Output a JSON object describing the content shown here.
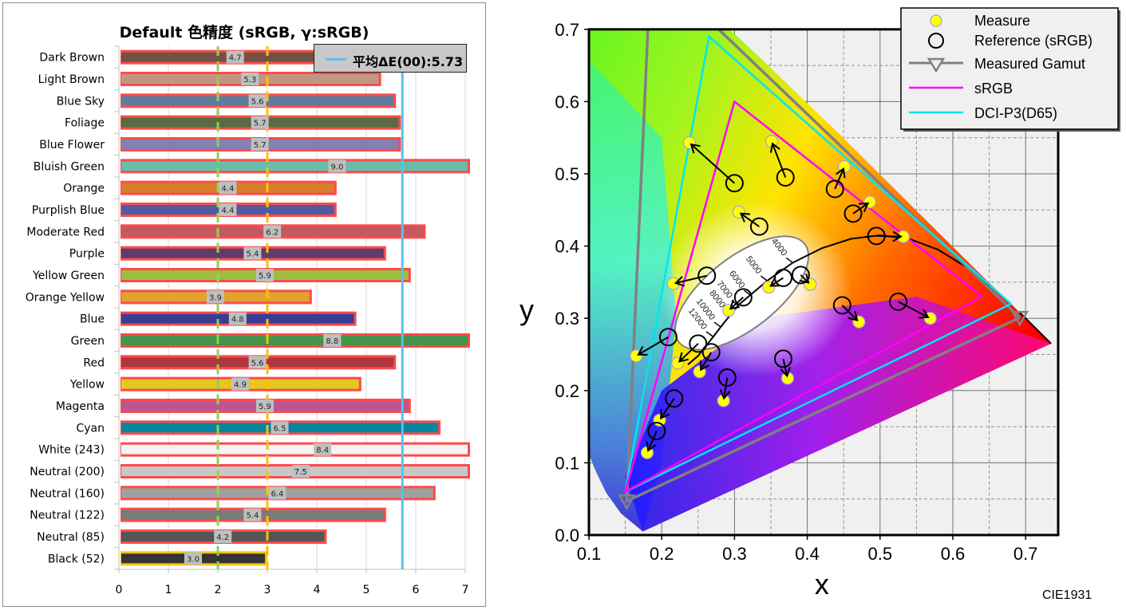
{
  "bar_chart_title": "Default 色精度 (sRGB, γ:sRGB)",
  "average_legend": "平均ΔE(00):5.73",
  "cie_caption": "CIE1931",
  "chart_data": [
    {
      "type": "bar",
      "orientation": "horizontal",
      "title": "Default 色精度 (sRGB, γ:sRGB)",
      "xlabel": "",
      "ylabel": "",
      "xlim": [
        0,
        7
      ],
      "x_ticks": [
        "0",
        "1",
        "2",
        "3",
        "4",
        "5",
        "6",
        "7"
      ],
      "grid": true,
      "categories": [
        "Dark Brown",
        "Light Brown",
        "Blue Sky",
        "Foliage",
        "Blue Flower",
        "Bluish Green",
        "Orange",
        "Purplish Blue",
        "Moderate Red",
        "Purple",
        "Yellow Green",
        "Orange Yellow",
        "Blue",
        "Green",
        "Red",
        "Yellow",
        "Magenta",
        "Cyan",
        "White (243)",
        "Neutral (200)",
        "Neutral (160)",
        "Neutral (122)",
        "Neutral (85)",
        "Black (52)"
      ],
      "values": [
        4.7,
        5.3,
        5.6,
        5.7,
        5.7,
        9.0,
        4.4,
        4.4,
        6.2,
        5.4,
        5.9,
        3.9,
        4.8,
        8.8,
        5.6,
        4.9,
        5.9,
        6.5,
        8.4,
        7.5,
        6.4,
        5.4,
        4.2,
        3.0
      ],
      "value_labels": [
        "4.7",
        "5.3",
        "5.6",
        "5.7",
        "5.7",
        "9.0",
        "4.4",
        "4.4",
        "6.2",
        "5.4",
        "5.9",
        "3.9",
        "4.8",
        "8.8",
        "5.6",
        "4.9",
        "5.9",
        "6.5",
        "8.4",
        "7.5",
        "6.4",
        "5.4",
        "4.2",
        "3.0"
      ],
      "bar_colors": [
        "#735244",
        "#c29682",
        "#627a9d",
        "#576c43",
        "#8580b1",
        "#67bdaa",
        "#d67e2c",
        "#505ba6",
        "#c15a63",
        "#5e3c6c",
        "#9dbc40",
        "#e0a32e",
        "#383d96",
        "#469449",
        "#af363c",
        "#e7c71f",
        "#bb5695",
        "#0885a1",
        "#f3f3f2",
        "#c8c8c8",
        "#a0a0a0",
        "#7a7a79",
        "#555555",
        "#343434"
      ],
      "border_colors": [
        "#ff4a4a",
        "#ff4a4a",
        "#ff4a4a",
        "#ff4a4a",
        "#ff4a4a",
        "#ff4a4a",
        "#ff4a4a",
        "#ff4a4a",
        "#ff4a4a",
        "#ff4a4a",
        "#ff4a4a",
        "#ff4a4a",
        "#ff4a4a",
        "#ff4a4a",
        "#ff4a4a",
        "#ff4a4a",
        "#ff4a4a",
        "#ff4a4a",
        "#ff4a4a",
        "#ff4a4a",
        "#ff4a4a",
        "#ff4a4a",
        "#ff4a4a",
        "#ffc000"
      ],
      "reference_lines": [
        {
          "name": "threshold-2",
          "value": 2,
          "color": "#92d050",
          "style": "dashed"
        },
        {
          "name": "threshold-3",
          "value": 3,
          "color": "#ffc000",
          "style": "dashed"
        },
        {
          "name": "average",
          "value": 5.73,
          "color": "#5bc0eb",
          "style": "solid",
          "label": "平均ΔE(00):5.73"
        }
      ],
      "legend_position": "top-right"
    },
    {
      "type": "scatter",
      "title": "CIE1931",
      "xlabel": "x",
      "ylabel": "y",
      "xlim": [
        0.1,
        0.745
      ],
      "ylim": [
        0.0,
        0.7
      ],
      "x_ticks": [
        "0.1",
        "0.2",
        "0.3",
        "0.4",
        "0.5",
        "0.6",
        "0.7"
      ],
      "y_ticks": [
        "0.0",
        "0.1",
        "0.2",
        "0.3",
        "0.4",
        "0.5",
        "0.6",
        "0.7"
      ],
      "grid": true,
      "legend_position": "top-right",
      "legend": [
        {
          "name": "Measure",
          "marker": "yellow-dot"
        },
        {
          "name": "Reference (sRGB)",
          "marker": "black-circle"
        },
        {
          "name": "Measured Gamut",
          "marker": "gray-line-triangle"
        },
        {
          "name": "sRGB",
          "marker": "magenta-line"
        },
        {
          "name": "DCI-P3(D65)",
          "marker": "cyan-line"
        }
      ],
      "gamuts": {
        "sRGB": {
          "color": "#ff00ff",
          "points": [
            [
              0.64,
              0.33
            ],
            [
              0.3,
              0.6
            ],
            [
              0.15,
              0.06
            ]
          ]
        },
        "DCI-P3(D65)": {
          "color": "#00e5ee",
          "points": [
            [
              0.68,
              0.32
            ],
            [
              0.265,
              0.69
            ],
            [
              0.15,
              0.06
            ]
          ]
        },
        "Measured Gamut": {
          "color": "#808080",
          "points": [
            [
              0.692,
              0.301
            ],
            [
              0.185,
              0.79
            ],
            [
              0.152,
              0.047
            ]
          ]
        }
      },
      "pairs": [
        {
          "measure": [
            0.238,
            0.543
          ],
          "reference": [
            0.3,
            0.487
          ]
        },
        {
          "measure": [
            0.351,
            0.545
          ],
          "reference": [
            0.37,
            0.495
          ]
        },
        {
          "measure": [
            0.451,
            0.51
          ],
          "reference": [
            0.438,
            0.479
          ]
        },
        {
          "measure": [
            0.486,
            0.461
          ],
          "reference": [
            0.463,
            0.445
          ]
        },
        {
          "measure": [
            0.532,
            0.413
          ],
          "reference": [
            0.495,
            0.414
          ]
        },
        {
          "measure": [
            0.306,
            0.447
          ],
          "reference": [
            0.334,
            0.427
          ]
        },
        {
          "measure": [
            0.216,
            0.348
          ],
          "reference": [
            0.262,
            0.359
          ]
        },
        {
          "measure": [
            0.292,
            0.311
          ],
          "reference": [
            0.312,
            0.329
          ]
        },
        {
          "measure": [
            0.347,
            0.343
          ],
          "reference": [
            0.367,
            0.356
          ]
        },
        {
          "measure": [
            0.404,
            0.347
          ],
          "reference": [
            0.391,
            0.36
          ]
        },
        {
          "measure": [
            0.165,
            0.248
          ],
          "reference": [
            0.209,
            0.274
          ]
        },
        {
          "measure": [
            0.222,
            0.238
          ],
          "reference": [
            0.25,
            0.265
          ]
        },
        {
          "measure": [
            0.252,
            0.226
          ],
          "reference": [
            0.268,
            0.253
          ]
        },
        {
          "measure": [
            0.285,
            0.186
          ],
          "reference": [
            0.29,
            0.218
          ]
        },
        {
          "measure": [
            0.373,
            0.217
          ],
          "reference": [
            0.367,
            0.244
          ]
        },
        {
          "measure": [
            0.471,
            0.295
          ],
          "reference": [
            0.448,
            0.318
          ]
        },
        {
          "measure": [
            0.569,
            0.3
          ],
          "reference": [
            0.525,
            0.323
          ]
        },
        {
          "measure": [
            0.197,
            0.159
          ],
          "reference": [
            0.217,
            0.189
          ]
        },
        {
          "measure": [
            0.18,
            0.114
          ],
          "reference": [
            0.193,
            0.144
          ]
        }
      ],
      "planckian_labels": [
        "4000",
        "5000",
        "6000",
        "7000",
        "8000",
        "10000",
        "12000"
      ]
    }
  ]
}
